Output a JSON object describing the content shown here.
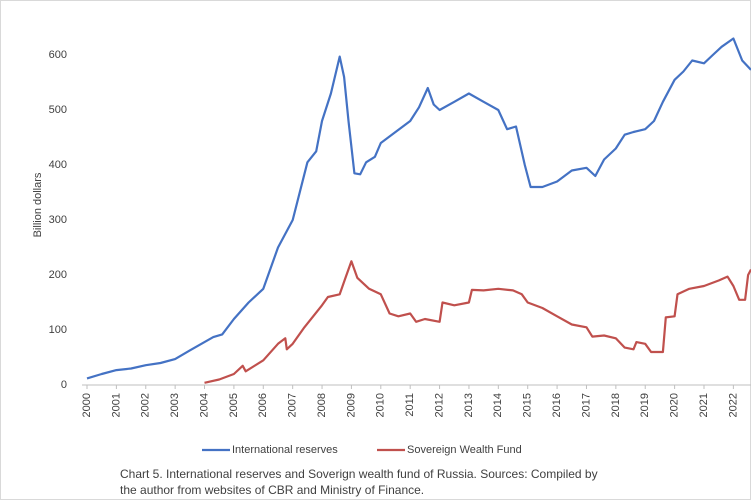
{
  "chart_data": {
    "type": "line",
    "y_label": "Billion dollars",
    "caption": [
      "Chart 5. International reserves and Soverign wealth fund of Russia. Sources: Compiled by",
      "the author from websites of CBR and Ministry of Finance."
    ],
    "xlim": [
      2000,
      2022.6
    ],
    "xticks": [
      2000,
      2001,
      2002,
      2003,
      2004,
      2005,
      2006,
      2007,
      2008,
      2009,
      2010,
      2011,
      2012,
      2013,
      2014,
      2015,
      2016,
      2017,
      2018,
      2019,
      2020,
      2021,
      2022
    ],
    "ylim": [
      0,
      660
    ],
    "yticks": [
      0,
      100,
      200,
      300,
      400,
      500,
      600
    ],
    "grid": false,
    "legend": "bottom",
    "series": [
      {
        "name": "International reserves",
        "color": "#4472c4",
        "x": [
          2000,
          2000.5,
          2001,
          2001.5,
          2002,
          2002.5,
          2003,
          2003.5,
          2004,
          2004.3,
          2004.6,
          2005,
          2005.5,
          2006,
          2006.5,
          2007,
          2007.5,
          2007.8,
          2008,
          2008.3,
          2008.6,
          2008.75,
          2008.9,
          2009.1,
          2009.3,
          2009.5,
          2009.8,
          2010,
          2010.5,
          2011,
          2011.3,
          2011.6,
          2011.8,
          2012,
          2012.5,
          2013,
          2013.5,
          2014,
          2014.3,
          2014.6,
          2014.9,
          2015.1,
          2015.5,
          2016,
          2016.5,
          2017,
          2017.3,
          2017.6,
          2018,
          2018.3,
          2018.6,
          2019,
          2019.3,
          2019.6,
          2020,
          2020.3,
          2020.6,
          2021,
          2021.3,
          2021.6,
          2022,
          2022.3,
          2022.6
        ],
        "values": [
          12,
          20,
          27,
          30,
          36,
          40,
          47,
          63,
          78,
          87,
          92,
          120,
          150,
          175,
          250,
          300,
          405,
          425,
          480,
          530,
          597,
          560,
          480,
          385,
          383,
          405,
          415,
          440,
          460,
          480,
          505,
          540,
          510,
          500,
          515,
          530,
          515,
          500,
          465,
          470,
          400,
          360,
          360,
          370,
          390,
          395,
          380,
          410,
          430,
          455,
          460,
          465,
          480,
          515,
          555,
          570,
          590,
          585,
          600,
          615,
          630,
          590,
          573
        ]
      },
      {
        "name": "Sovereign Wealth Fund",
        "color": "#c0504d",
        "x": [
          2004,
          2004.5,
          2005,
          2005.3,
          2005.4,
          2006,
          2006.5,
          2006.75,
          2006.8,
          2007,
          2007.4,
          2008,
          2008.2,
          2008.6,
          2008.8,
          2009,
          2009.2,
          2009.6,
          2010,
          2010.3,
          2010.6,
          2011,
          2011.2,
          2011.5,
          2012,
          2012.1,
          2012.5,
          2013,
          2013.1,
          2013.5,
          2014,
          2014.5,
          2014.8,
          2015,
          2015.5,
          2016,
          2016.5,
          2017,
          2017.2,
          2017.6,
          2018,
          2018.3,
          2018.6,
          2018.7,
          2019,
          2019.2,
          2019.6,
          2019.7,
          2020,
          2020.1,
          2020.5,
          2021,
          2021.5,
          2021.8,
          2022,
          2022.2,
          2022.4,
          2022.5,
          2022.6
        ],
        "values": [
          4,
          10,
          20,
          35,
          25,
          45,
          75,
          85,
          65,
          75,
          105,
          145,
          160,
          165,
          195,
          225,
          195,
          175,
          165,
          130,
          125,
          130,
          115,
          120,
          115,
          150,
          145,
          150,
          173,
          172,
          175,
          172,
          165,
          150,
          140,
          125,
          110,
          105,
          88,
          90,
          85,
          68,
          65,
          78,
          75,
          60,
          60,
          123,
          125,
          165,
          175,
          180,
          190,
          197,
          180,
          155,
          155,
          200,
          210
        ]
      }
    ]
  }
}
